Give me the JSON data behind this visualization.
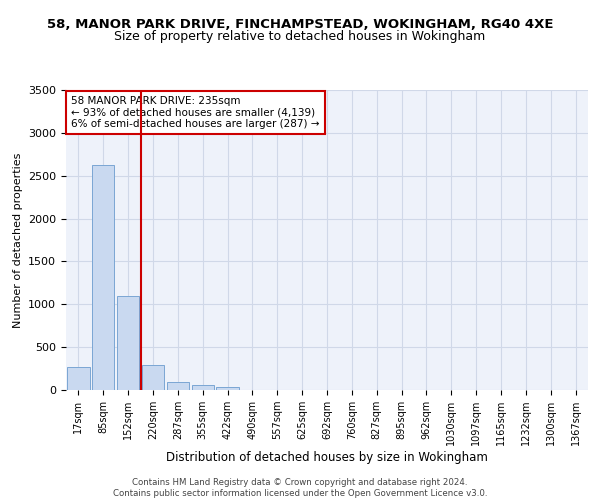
{
  "title1": "58, MANOR PARK DRIVE, FINCHAMPSTEAD, WOKINGHAM, RG40 4XE",
  "title2": "Size of property relative to detached houses in Wokingham",
  "xlabel": "Distribution of detached houses by size in Wokingham",
  "ylabel": "Number of detached properties",
  "bar_labels": [
    "17sqm",
    "85sqm",
    "152sqm",
    "220sqm",
    "287sqm",
    "355sqm",
    "422sqm",
    "490sqm",
    "557sqm",
    "625sqm",
    "692sqm",
    "760sqm",
    "827sqm",
    "895sqm",
    "962sqm",
    "1030sqm",
    "1097sqm",
    "1165sqm",
    "1232sqm",
    "1300sqm",
    "1367sqm"
  ],
  "bar_values": [
    270,
    2620,
    1100,
    290,
    95,
    55,
    30,
    0,
    0,
    0,
    0,
    0,
    0,
    0,
    0,
    0,
    0,
    0,
    0,
    0,
    0
  ],
  "bar_color": "#c9d9f0",
  "bar_edge_color": "#7aa6d4",
  "vline_color": "#cc0000",
  "annotation_text": "58 MANOR PARK DRIVE: 235sqm\n← 93% of detached houses are smaller (4,139)\n6% of semi-detached houses are larger (287) →",
  "annotation_box_color": "#ffffff",
  "annotation_box_edge": "#cc0000",
  "ylim": [
    0,
    3500
  ],
  "yticks": [
    0,
    500,
    1000,
    1500,
    2000,
    2500,
    3000,
    3500
  ],
  "grid_color": "#d0d8e8",
  "bg_color": "#eef2fa",
  "footer": "Contains HM Land Registry data © Crown copyright and database right 2024.\nContains public sector information licensed under the Open Government Licence v3.0.",
  "title1_fontsize": 9.5,
  "title2_fontsize": 9,
  "xlabel_fontsize": 8.5,
  "ylabel_fontsize": 8
}
